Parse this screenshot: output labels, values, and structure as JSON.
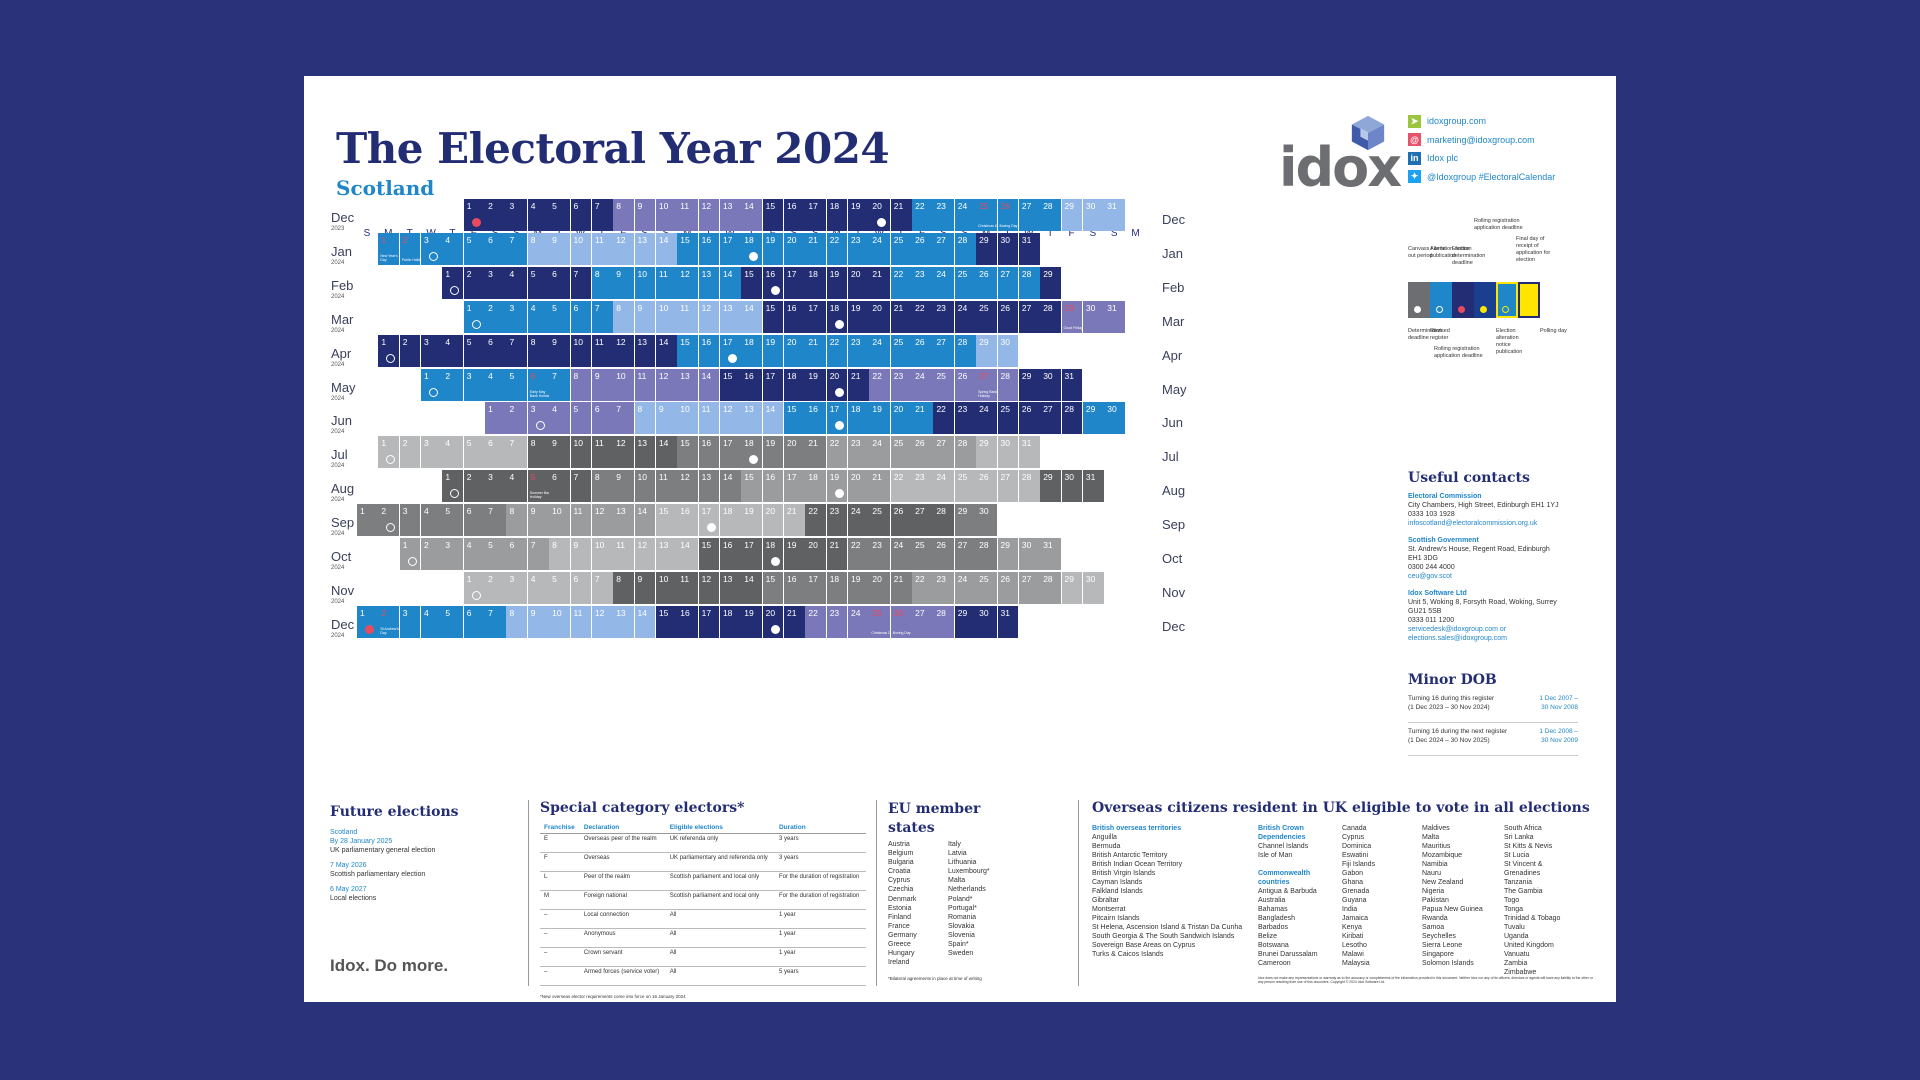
{
  "title": "The Electoral Year 2024",
  "subtitle": "Scotland",
  "logo": "idox",
  "links": [
    {
      "icon": "cursor-icon",
      "text": "idoxgroup.com",
      "color": "#9bc53d"
    },
    {
      "icon": "at-icon",
      "text": "marketing@idoxgroup.com",
      "color": "#e8516a"
    },
    {
      "icon": "linkedin-icon",
      "text": "Idox plc",
      "color": "#1f6fb5"
    },
    {
      "icon": "twitter-icon",
      "text": "@Idoxgroup #ElectoralCalendar",
      "color": "#1da1f2"
    }
  ],
  "weekdays": [
    "S",
    "M",
    "T",
    "W",
    "T",
    "F",
    "S",
    "S",
    "M",
    "T",
    "W",
    "T",
    "F",
    "S",
    "S",
    "M",
    "T",
    "W",
    "T",
    "F",
    "S",
    "S",
    "M",
    "T",
    "W",
    "T",
    "F",
    "S",
    "S",
    "M",
    "T",
    "W",
    "T",
    "F",
    "S",
    "S",
    "M"
  ],
  "months": [
    {
      "name": "Dec",
      "year": "2023"
    },
    {
      "name": "Jan",
      "year": "2024"
    },
    {
      "name": "Feb",
      "year": "2024"
    },
    {
      "name": "Mar",
      "year": "2024"
    },
    {
      "name": "Apr",
      "year": "2024"
    },
    {
      "name": "May",
      "year": "2024"
    },
    {
      "name": "Jun",
      "year": "2024"
    },
    {
      "name": "Jul",
      "year": "2024"
    },
    {
      "name": "Aug",
      "year": "2024"
    },
    {
      "name": "Sep",
      "year": "2024"
    },
    {
      "name": "Oct",
      "year": "2024"
    },
    {
      "name": "Nov",
      "year": "2024"
    },
    {
      "name": "Dec",
      "year": "2024"
    }
  ],
  "holidays": {
    "Christmas Day": "Christmas Day",
    "Boxing Day": "Boxing Day",
    "New Year's Day": "New Year's Day",
    "Public Holiday": "Public Holiday",
    "Good Friday": "Good Friday",
    "Early May Bank Holiday": "Early May Bank Holiday",
    "Spring Bank Holiday": "Spring Bank Holiday",
    "Summer Bank Holiday": "Summer Bank Holiday",
    "St Andrew's Day": "St Andrew's Day"
  },
  "legend": {
    "top_labels": [
      "Canvass / write out period",
      "Alteration notice publication",
      "Election determination deadline",
      "Rolling registration application deadline",
      "Final day of receipt of application for election"
    ],
    "bottom_labels": [
      "Determination deadline",
      "Revised register",
      "Rolling registration application deadline",
      "Election alteration notice publication",
      "Polling day"
    ],
    "colors": [
      "#6d6e71",
      "#1f86c9",
      "#232d74",
      "#1b3f8f",
      "#1f86c9",
      "#ffe600"
    ]
  },
  "useful_contacts": {
    "heading": "Useful contacts",
    "items": [
      {
        "name": "Electoral Commission",
        "lines": [
          "City Chambers, High Street, Edinburgh EH1 1YJ",
          "0333 103 1928"
        ],
        "email": "infoscotland@electoralcommission.org.uk"
      },
      {
        "name": "Scottish Government",
        "lines": [
          "St. Andrew's House, Regent Road, Edinburgh",
          "EH1 3DG",
          "0300 244 4000"
        ],
        "email": "ceu@gov.scot"
      },
      {
        "name": "Idox Software Ltd",
        "lines": [
          "Unit 5, Woking 8, Forsyth Road, Woking, Surrey",
          "GU21 5SB",
          "0333 011 1200"
        ],
        "email": "servicedesk@idoxgroup.com or",
        "email2": "elections.sales@idoxgroup.com"
      }
    ]
  },
  "minor_dob": {
    "heading": "Minor DOB",
    "rows": [
      {
        "label": "Turning 16 during this register",
        "range_label": "(1 Dec 2023 – 30 Nov 2024)",
        "value": "1 Dec 2007 –",
        "value2": "30 Nov 2008"
      },
      {
        "label": "Turning 16 during the next register",
        "range_label": "(1 Dec 2024 – 30 Nov 2025)",
        "value": "1 Dec 2008 –",
        "value2": "30 Nov 2009"
      }
    ]
  },
  "future_elections": {
    "heading": "Future elections",
    "items": [
      {
        "place": "Scotland",
        "date": "By 28 January 2025",
        "desc": "UK parliamentary general election"
      },
      {
        "place": "",
        "date": "7 May 2026",
        "desc": "Scottish parliamentary election"
      },
      {
        "place": "",
        "date": "6 May 2027",
        "desc": "Local elections"
      }
    ]
  },
  "special": {
    "heading": "Special category electors*",
    "headers": [
      "Franchise",
      "Declaration",
      "Eligible elections",
      "Duration"
    ],
    "rows": [
      [
        "E",
        "Overseas peer of the realm",
        "UK referenda only",
        "3 years"
      ],
      [
        "F",
        "Overseas",
        "UK parliamentary and referenda only",
        "3 years"
      ],
      [
        "L",
        "Peer of the realm",
        "Scottish parliament and local only",
        "For the duration of registration"
      ],
      [
        "M",
        "Foreign national",
        "Scottish parliament and local only",
        "For the duration of registration"
      ],
      [
        "–",
        "Local connection",
        "All",
        "1 year"
      ],
      [
        "–",
        "Anonymous",
        "All",
        "1 year"
      ],
      [
        "–",
        "Crown servant",
        "All",
        "1 year"
      ],
      [
        "–",
        "Armed forces (service voter)",
        "All",
        "5 years"
      ]
    ],
    "footnote": "*New overseas elector requirements come into force on 16 January 2024"
  },
  "eu": {
    "heading": "EU member states",
    "col1": [
      "Austria",
      "Belgium",
      "Bulgaria",
      "Croatia",
      "Cyprus",
      "Czechia",
      "Denmark",
      "Estonia",
      "Finland",
      "France",
      "Germany",
      "Greece",
      "Hungary",
      "Ireland"
    ],
    "col2": [
      "Italy",
      "Latvia",
      "Lithuania",
      "Luxembourg*",
      "Malta",
      "Netherlands",
      "Poland*",
      "Portugal*",
      "Romania",
      "Slovakia",
      "Slovenia",
      "Spain*",
      "Sweden"
    ],
    "footnote": "*Bilateral agreements in place at time of writing"
  },
  "overseas": {
    "heading": "Overseas citizens resident in UK eligible to vote in all elections",
    "bot_heading": "British overseas territories",
    "bot": [
      "Anguilla",
      "Bermuda",
      "British Antarctic Territory",
      "British Indian Ocean Territory",
      "British Virgin Islands",
      "Cayman Islands",
      "Falkland Islands",
      "Gibraltar",
      "Montserrat",
      "Pitcairn Islands",
      "St Helena, Ascension Island & Tristan Da Cunha",
      "South Georgia & The South Sandwich Islands",
      "Sovereign Base Areas on Cyprus",
      "Turks & Caicos Islands"
    ],
    "crown_heading": "British Crown Dependencies",
    "crown": [
      "Channel Islands",
      "Isle of Man"
    ],
    "cw_heading": "Commonwealth countries",
    "cw1": [
      "Antigua & Barbuda",
      "Australia",
      "Bahamas",
      "Bangladesh",
      "Barbados",
      "Belize",
      "Botswana",
      "Brunei Darussalam",
      "Cameroon"
    ],
    "cw2": [
      "Canada",
      "Cyprus",
      "Dominica",
      "Eswatini",
      "Fiji Islands",
      "Gabon",
      "Ghana",
      "Grenada",
      "Guyana",
      "India",
      "Jamaica",
      "Kenya",
      "Kiribati",
      "Lesotho",
      "Malawi",
      "Malaysia"
    ],
    "cw3": [
      "Maldives",
      "Malta",
      "Mauritius",
      "Mozambique",
      "Namibia",
      "Nauru",
      "New Zealand",
      "Nigeria",
      "Pakistan",
      "Papua New Guinea",
      "Rwanda",
      "Samoa",
      "Seychelles",
      "Sierra Leone",
      "Singapore",
      "Solomon Islands"
    ],
    "cw4": [
      "South Africa",
      "Sri Lanka",
      "St Kitts & Nevis",
      "St Lucia",
      "St Vincent &",
      "  Grenadines",
      "Tanzania",
      "The Gambia",
      "Togo",
      "Tonga",
      "Trinidad & Tobago",
      "Tuvalu",
      "Uganda",
      "United Kingdom",
      "Vanuatu",
      "Zambia",
      "Zimbabwe"
    ]
  },
  "disclaimer": "Idox does not make any representations or warranty as to the accuracy or completeness of the information provided in this document. Neither Idox nor any of its officers, directors or agents will have any liability to the other or any person resulting from use of this document. Copyright © 2024 Idox Software Ltd.",
  "tagline": "Idox. Do more."
}
